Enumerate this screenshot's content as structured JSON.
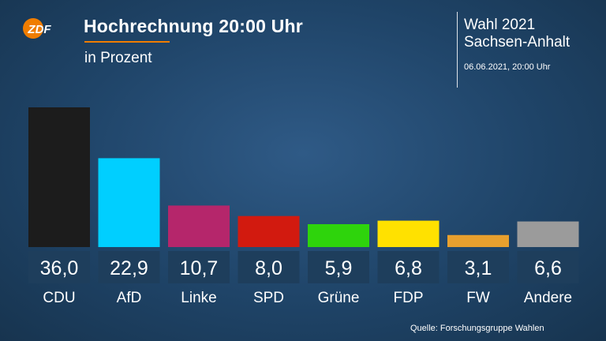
{
  "header": {
    "logo_text": "ZDF",
    "title": "Hochrechnung 20:00 Uhr",
    "subtitle": "in Prozent",
    "election_line1": "Wahl 2021",
    "election_line2": "Sachsen-Anhalt",
    "timestamp": "06.06.2021, 20:00 Uhr"
  },
  "footer": {
    "source": "Quelle: Forschungsgruppe Wahlen"
  },
  "colors": {
    "accent": "#f07d00",
    "value_box": "#1e3e5c"
  },
  "chart_data": {
    "type": "bar",
    "title": "Hochrechnung 20:00 Uhr",
    "subtitle": "in Prozent",
    "categories": [
      "CDU",
      "AfD",
      "Linke",
      "SPD",
      "Grüne",
      "FDP",
      "FW",
      "Andere"
    ],
    "values": [
      36.0,
      22.9,
      10.7,
      8.0,
      5.9,
      6.8,
      3.1,
      6.6
    ],
    "value_labels": [
      "36,0",
      "22,9",
      "10,7",
      "8,0",
      "5,9",
      "6,8",
      "3,1",
      "6,6"
    ],
    "colors": [
      "#1c1c1c",
      "#00cfff",
      "#b5266b",
      "#d21a0f",
      "#2ed40c",
      "#ffe100",
      "#e8a02e",
      "#9b9b9b"
    ],
    "grid": false,
    "legend": "none"
  }
}
